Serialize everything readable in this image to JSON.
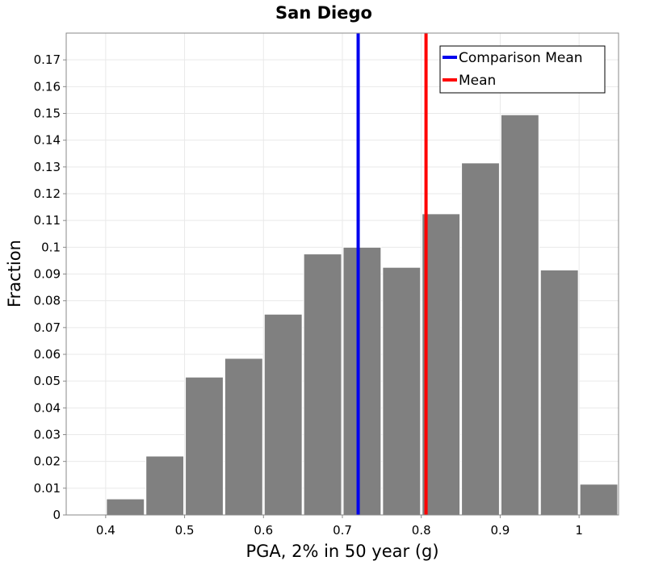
{
  "chart_data": {
    "type": "bar",
    "title": "San Diego",
    "xlabel": "PGA, 2% in 50 year (g)",
    "ylabel": "Fraction",
    "xlim": [
      0.35,
      1.05
    ],
    "ylim": [
      0,
      0.18
    ],
    "grid": true,
    "legend_position": "top-right",
    "bar_color": "#808080",
    "bin_width": 0.05,
    "bins": [
      {
        "x": 0.375,
        "value": 0.0
      },
      {
        "x": 0.425,
        "value": 0.006
      },
      {
        "x": 0.475,
        "value": 0.022
      },
      {
        "x": 0.525,
        "value": 0.0515
      },
      {
        "x": 0.575,
        "value": 0.0585
      },
      {
        "x": 0.625,
        "value": 0.075
      },
      {
        "x": 0.675,
        "value": 0.0975
      },
      {
        "x": 0.725,
        "value": 0.1
      },
      {
        "x": 0.775,
        "value": 0.0925
      },
      {
        "x": 0.825,
        "value": 0.1125
      },
      {
        "x": 0.875,
        "value": 0.1315
      },
      {
        "x": 0.925,
        "value": 0.1495
      },
      {
        "x": 0.975,
        "value": 0.0915
      },
      {
        "x": 1.025,
        "value": 0.0115
      }
    ],
    "x_ticks": [
      {
        "value": 0.4,
        "label": "0.4"
      },
      {
        "value": 0.5,
        "label": "0.5"
      },
      {
        "value": 0.6,
        "label": "0.6"
      },
      {
        "value": 0.7,
        "label": "0.7"
      },
      {
        "value": 0.8,
        "label": "0.8"
      },
      {
        "value": 0.9,
        "label": "0.9"
      },
      {
        "value": 1.0,
        "label": "1"
      }
    ],
    "y_ticks": [
      {
        "value": 0,
        "label": "0"
      },
      {
        "value": 0.01,
        "label": "0.01"
      },
      {
        "value": 0.02,
        "label": "0.02"
      },
      {
        "value": 0.03,
        "label": "0.03"
      },
      {
        "value": 0.04,
        "label": "0.04"
      },
      {
        "value": 0.05,
        "label": "0.05"
      },
      {
        "value": 0.06,
        "label": "0.06"
      },
      {
        "value": 0.07,
        "label": "0.07"
      },
      {
        "value": 0.08,
        "label": "0.08"
      },
      {
        "value": 0.09,
        "label": "0.09"
      },
      {
        "value": 0.1,
        "label": "0.1"
      },
      {
        "value": 0.11,
        "label": "0.11"
      },
      {
        "value": 0.12,
        "label": "0.12"
      },
      {
        "value": 0.13,
        "label": "0.13"
      },
      {
        "value": 0.14,
        "label": "0.14"
      },
      {
        "value": 0.15,
        "label": "0.15"
      },
      {
        "value": 0.16,
        "label": "0.16"
      },
      {
        "value": 0.17,
        "label": "0.17"
      }
    ],
    "reference_lines": [
      {
        "name": "Comparison Mean",
        "x": 0.72,
        "color": "#0000ee"
      },
      {
        "name": "Mean",
        "x": 0.806,
        "color": "#ff0000"
      }
    ]
  }
}
